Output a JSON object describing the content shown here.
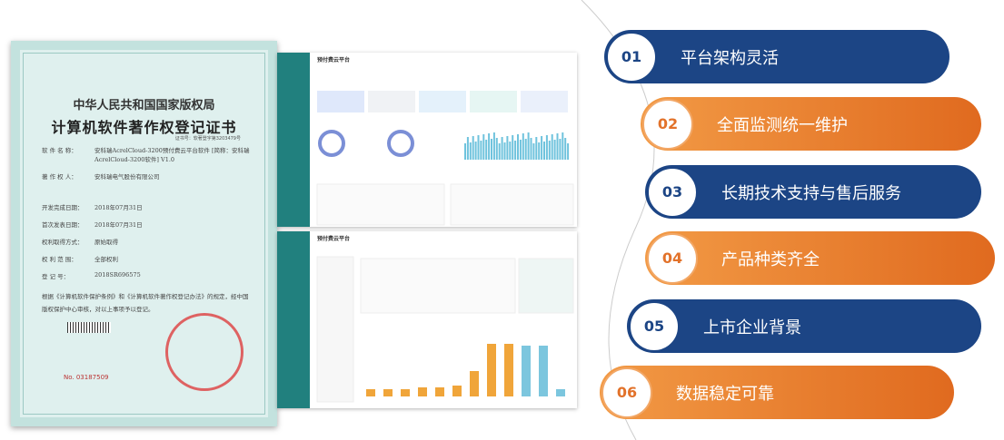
{
  "certificate": {
    "authority": "中华人民共和国国家版权局",
    "title": "计算机软件著作权登记证书",
    "cert_no": "证书号：软著登字第3203479号",
    "fields": [
      {
        "label": "软 件 名 称：",
        "value": "安科瑞AcrelCloud-3200预付费云平台软件 [简称：安科瑞AcrelCloud-3200软件] V1.0"
      },
      {
        "label": "著 作 权 人：",
        "value": "安科瑞电气股份有限公司"
      },
      {
        "label": "开发完成日期：",
        "value": "2018年07月31日"
      },
      {
        "label": "首次发表日期：",
        "value": "2018年07月31日"
      },
      {
        "label": "权利取得方式：",
        "value": "原始取得"
      },
      {
        "label": "权 利 范 围：",
        "value": "全部权利"
      },
      {
        "label": "登 记 号：",
        "value": "2018SR696575"
      }
    ],
    "statement": "根据《计算机软件保护条例》和《计算机软件著作权登记办法》的规定，经中国版权保护中心审核，对以上事项予以登记。",
    "serial": "No. 03187509"
  },
  "dashboards": [
    {
      "title": "预付费云平台"
    },
    {
      "title": "预付费云平台"
    }
  ],
  "features": [
    {
      "number": "01",
      "label": "平台架构灵活"
    },
    {
      "number": "02",
      "label": "全面监测统一维护"
    },
    {
      "number": "03",
      "label": "长期技术支持与售后服务"
    },
    {
      "number": "04",
      "label": "产品种类齐全"
    },
    {
      "number": "05",
      "label": "上市企业背景"
    },
    {
      "number": "06",
      "label": "数据稳定可靠"
    }
  ]
}
